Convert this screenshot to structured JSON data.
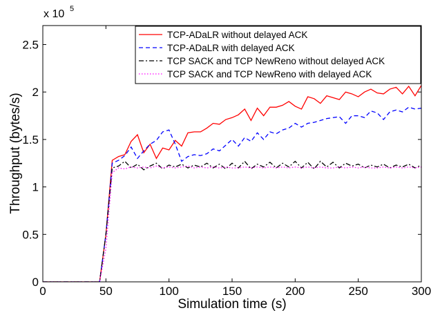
{
  "chart_data": {
    "type": "line",
    "title": "",
    "xlabel": "Simulation time (s)",
    "ylabel": "Throughput (bytes/s)",
    "y_multiplier_label": "x 10",
    "y_multiplier_exponent": "5",
    "xlim": [
      0,
      300
    ],
    "ylim": [
      0,
      2.7
    ],
    "x_ticks": [
      0,
      50,
      100,
      150,
      200,
      250,
      300
    ],
    "x_tick_labels": [
      "0",
      "50",
      "100",
      "150",
      "200",
      "250",
      "300"
    ],
    "y_ticks": [
      0,
      0.5,
      1,
      1.5,
      2,
      2.5
    ],
    "y_tick_labels": [
      "0",
      "0.5",
      "1",
      "1.5",
      "2",
      "2.5"
    ],
    "grid": false,
    "legend_position": "top-right",
    "series": [
      {
        "name": "TCP-ADaLR without delayed ACK",
        "color": "#ff0000",
        "dash": "solid",
        "x": [
          0,
          45,
          50,
          55,
          60,
          65,
          70,
          75,
          80,
          85,
          90,
          95,
          100,
          105,
          110,
          115,
          120,
          125,
          130,
          135,
          140,
          145,
          150,
          155,
          160,
          165,
          170,
          175,
          180,
          185,
          190,
          195,
          200,
          205,
          210,
          215,
          220,
          225,
          230,
          235,
          240,
          245,
          250,
          255,
          260,
          265,
          270,
          275,
          280,
          285,
          290,
          295,
          300
        ],
        "y": [
          0,
          0,
          0.5,
          1.28,
          1.32,
          1.34,
          1.48,
          1.55,
          1.36,
          1.45,
          1.3,
          1.41,
          1.39,
          1.49,
          1.43,
          1.57,
          1.58,
          1.58,
          1.62,
          1.67,
          1.66,
          1.71,
          1.73,
          1.76,
          1.82,
          1.7,
          1.83,
          1.75,
          1.84,
          1.84,
          1.86,
          1.9,
          1.85,
          1.82,
          1.95,
          1.93,
          1.88,
          1.96,
          1.94,
          1.92,
          2.0,
          1.98,
          1.95,
          2.0,
          2.03,
          1.99,
          1.98,
          2.03,
          2.05,
          1.98,
          2.06,
          1.96,
          2.07
        ]
      },
      {
        "name": "TCP-ADaLR with delayed ACK",
        "color": "#0000ff",
        "dash": "dashed",
        "x": [
          0,
          45,
          50,
          55,
          60,
          65,
          70,
          75,
          80,
          85,
          90,
          95,
          100,
          105,
          110,
          115,
          120,
          125,
          130,
          135,
          140,
          145,
          150,
          155,
          160,
          165,
          170,
          175,
          180,
          185,
          190,
          195,
          200,
          205,
          210,
          215,
          220,
          225,
          230,
          235,
          240,
          245,
          250,
          255,
          260,
          265,
          270,
          275,
          280,
          285,
          290,
          295,
          300
        ],
        "y": [
          0,
          0,
          0.5,
          1.25,
          1.28,
          1.33,
          1.42,
          1.3,
          1.38,
          1.45,
          1.49,
          1.58,
          1.6,
          1.45,
          1.27,
          1.32,
          1.34,
          1.33,
          1.35,
          1.4,
          1.38,
          1.44,
          1.5,
          1.43,
          1.52,
          1.48,
          1.57,
          1.5,
          1.58,
          1.56,
          1.6,
          1.62,
          1.67,
          1.63,
          1.67,
          1.68,
          1.7,
          1.72,
          1.73,
          1.74,
          1.67,
          1.75,
          1.75,
          1.73,
          1.8,
          1.78,
          1.71,
          1.79,
          1.81,
          1.79,
          1.84,
          1.82,
          1.83
        ]
      },
      {
        "name": "TCP SACK and TCP NewReno without delayed ACK",
        "color": "#000000",
        "dash": "dashdot",
        "x": [
          0,
          45,
          50,
          55,
          60,
          65,
          70,
          75,
          80,
          85,
          90,
          95,
          100,
          105,
          110,
          115,
          120,
          125,
          130,
          135,
          140,
          145,
          150,
          155,
          160,
          165,
          170,
          175,
          180,
          185,
          190,
          195,
          200,
          205,
          210,
          215,
          220,
          225,
          230,
          235,
          240,
          245,
          250,
          255,
          260,
          265,
          270,
          275,
          280,
          285,
          290,
          295,
          300
        ],
        "y": [
          0,
          0,
          0.5,
          1.2,
          1.22,
          1.27,
          1.2,
          1.24,
          1.18,
          1.22,
          1.25,
          1.19,
          1.23,
          1.21,
          1.24,
          1.2,
          1.23,
          1.21,
          1.25,
          1.2,
          1.24,
          1.19,
          1.25,
          1.2,
          1.27,
          1.19,
          1.24,
          1.21,
          1.26,
          1.2,
          1.25,
          1.21,
          1.27,
          1.2,
          1.26,
          1.19,
          1.27,
          1.21,
          1.26,
          1.2,
          1.25,
          1.22,
          1.24,
          1.2,
          1.23,
          1.21,
          1.24,
          1.2,
          1.23,
          1.21,
          1.24,
          1.2,
          1.23
        ]
      },
      {
        "name": "TCP SACK and TCP NewReno with delayed ACK",
        "color": "#ff00ff",
        "dash": "dotted",
        "x": [
          0,
          45,
          50,
          55,
          60,
          65,
          70,
          75,
          80,
          85,
          90,
          95,
          100,
          105,
          110,
          115,
          120,
          125,
          130,
          135,
          140,
          145,
          150,
          155,
          160,
          165,
          170,
          175,
          180,
          185,
          190,
          195,
          200,
          205,
          210,
          215,
          220,
          225,
          230,
          235,
          240,
          245,
          250,
          255,
          260,
          265,
          270,
          275,
          280,
          285,
          290,
          295,
          300
        ],
        "y": [
          0,
          0,
          0.35,
          1.15,
          1.2,
          1.19,
          1.21,
          1.2,
          1.21,
          1.2,
          1.22,
          1.2,
          1.21,
          1.2,
          1.21,
          1.22,
          1.2,
          1.21,
          1.2,
          1.21,
          1.2,
          1.21,
          1.2,
          1.2,
          1.21,
          1.2,
          1.21,
          1.2,
          1.21,
          1.2,
          1.21,
          1.2,
          1.21,
          1.2,
          1.21,
          1.2,
          1.21,
          1.2,
          1.2,
          1.21,
          1.2,
          1.21,
          1.2,
          1.21,
          1.2,
          1.2,
          1.21,
          1.2,
          1.21,
          1.2,
          1.21,
          1.2,
          1.21
        ]
      }
    ]
  }
}
